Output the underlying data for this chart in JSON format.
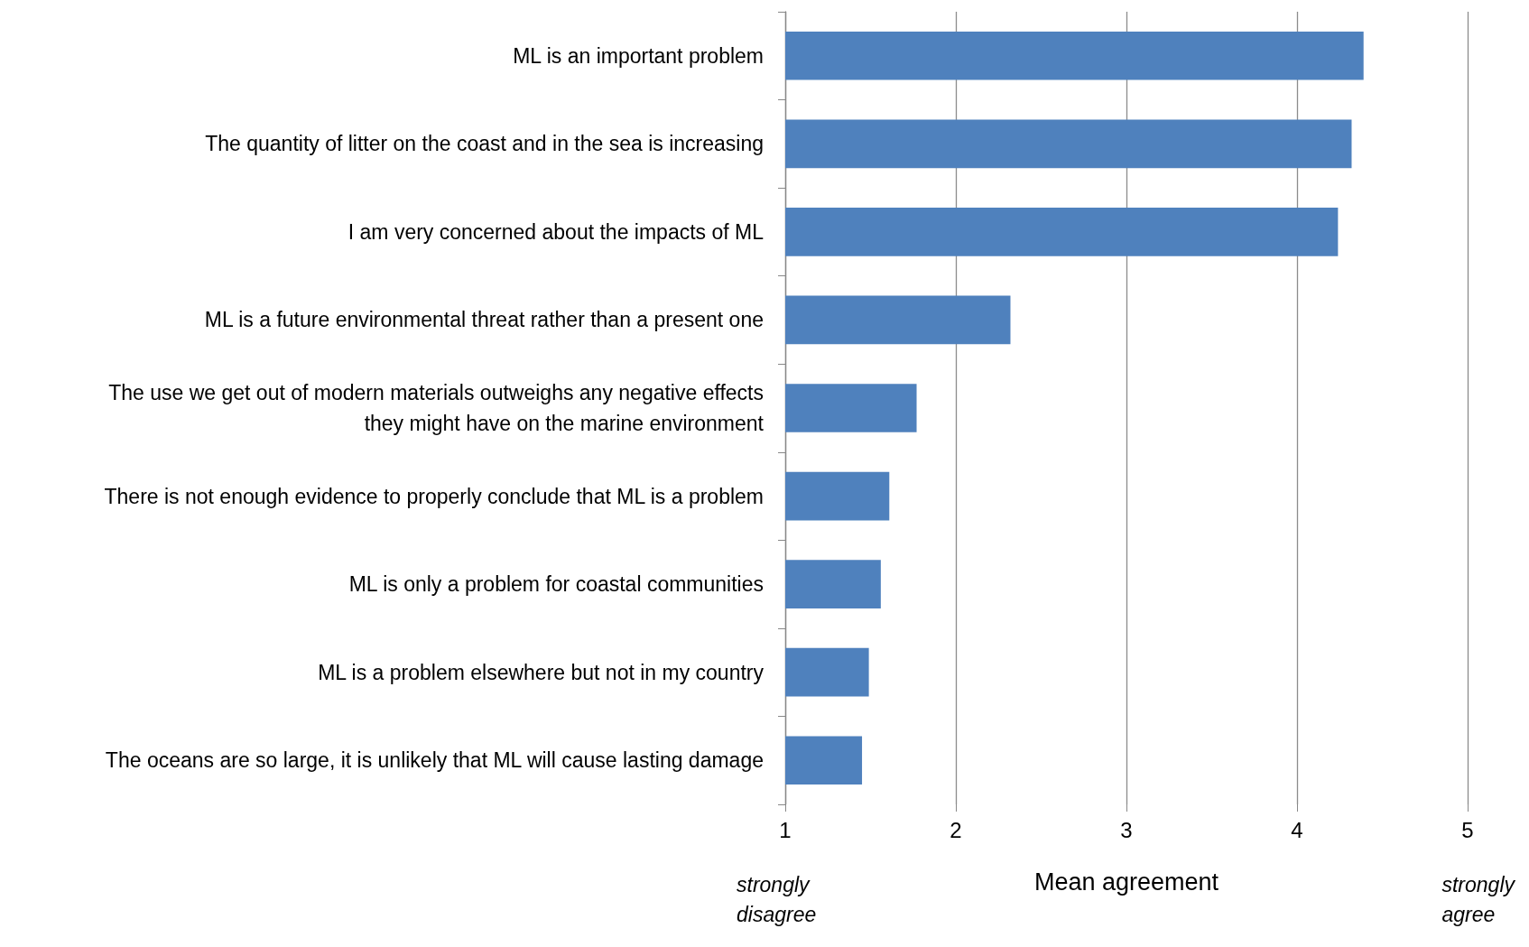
{
  "chart_data": {
    "type": "bar",
    "orientation": "horizontal",
    "xlabel": "Mean agreement",
    "categories": [
      "ML is an important problem",
      "The quantity of litter on the coast and in the sea is increasing",
      "I am very concerned about the impacts of ML",
      "ML is a future environmental threat rather than a present one",
      "The use we get out of modern materials outweighs any negative effects\nthey might have on the marine environment",
      "There is not enough evidence to properly conclude that ML is a problem",
      "ML is only a problem for coastal communities",
      "ML is a problem elsewhere but not in my country",
      "The oceans are so large, it is unlikely that ML will cause lasting damage"
    ],
    "values": [
      4.39,
      4.32,
      4.24,
      2.32,
      1.77,
      1.61,
      1.56,
      1.49,
      1.45
    ],
    "color": "#4f81bd",
    "xlim": [
      1,
      5
    ],
    "xticks": [
      1,
      2,
      3,
      4,
      5
    ],
    "grid": "x",
    "annotations": [
      "strongly\ndisagree",
      "strongly\nagree"
    ]
  }
}
